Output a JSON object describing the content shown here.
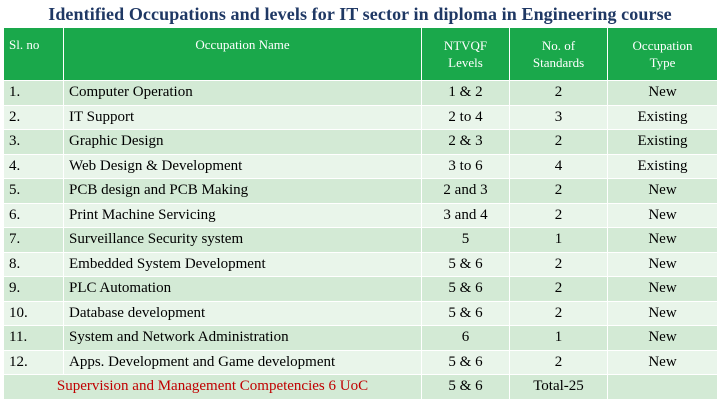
{
  "title": "Identified Occupations and levels for IT  sector in diploma in Engineering course",
  "headers": {
    "sl_no": "Sl. no",
    "occupation_name": "Occupation Name",
    "ntvqf_line1": "NTVQF",
    "ntvqf_line2": "Levels",
    "standards_line1": "No. of",
    "standards_line2": "Standards",
    "type_line1": "Occupation",
    "type_line2": "Type"
  },
  "rows": [
    {
      "sl": "1.",
      "name": "Computer Operation",
      "levels": "1 & 2",
      "standards": "2",
      "type": "New"
    },
    {
      "sl": "2.",
      "name": "IT Support",
      "levels": "2 to 4",
      "standards": "3",
      "type": "Existing"
    },
    {
      "sl": "3.",
      "name": "Graphic Design",
      "levels": "2  & 3",
      "standards": "2",
      "type": "Existing"
    },
    {
      "sl": "4.",
      "name": "Web Design & Development",
      "levels": "3  to 6",
      "standards": "4",
      "type": "Existing"
    },
    {
      "sl": "5.",
      "name": "PCB  design and  PCB Making",
      "levels": "2 and 3",
      "standards": "2",
      "type": "New"
    },
    {
      "sl": "6.",
      "name": "Print Machine Servicing",
      "levels": "3 and 4",
      "standards": "2",
      "type": "New"
    },
    {
      "sl": "7.",
      "name": "Surveillance Security system",
      "levels": "5",
      "standards": "1",
      "type": "New"
    },
    {
      "sl": "8.",
      "name": "Embedded System Development",
      "levels": "5 & 6",
      "standards": "2",
      "type": "New"
    },
    {
      "sl": "9.",
      "name": "PLC Automation",
      "levels": "5 & 6",
      "standards": "2",
      "type": "New"
    },
    {
      "sl": "10.",
      "name": "Database development",
      "levels": "5 & 6",
      "standards": "2",
      "type": "New"
    },
    {
      "sl": "11.",
      "name": "System and Network Administration",
      "levels": "6",
      "standards": "1",
      "type": "New"
    },
    {
      "sl": "12.",
      "name": "Apps. Development and Game development",
      "levels": "5 & 6",
      "standards": "2",
      "type": "New"
    }
  ],
  "footer": {
    "label": "Supervision and Management Competencies 6 UoC",
    "levels": "5 & 6",
    "total": "Total-25",
    "type": ""
  },
  "colors": {
    "header_bg": "#1aa84b",
    "row_dark": "#d3ead5",
    "row_light": "#e9f5ea",
    "title": "#1f3864",
    "footer_label": "#c00000"
  }
}
